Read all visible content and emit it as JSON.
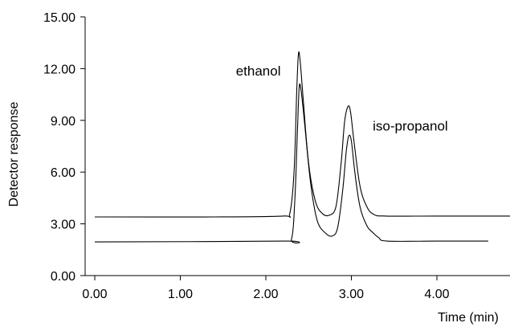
{
  "chart_data": {
    "type": "line",
    "title": "",
    "xlabel": "Time (min)",
    "ylabel": "Detector response",
    "xlim": [
      0,
      4.95
    ],
    "ylim": [
      0,
      15
    ],
    "grid": false,
    "x_ticks": [
      "0.00",
      "1.00",
      "2.00",
      "3.00",
      "4.00"
    ],
    "x_tick_values": [
      0,
      1,
      2,
      3,
      4
    ],
    "y_ticks": [
      "0.00",
      "3.00",
      "6.00",
      "9.00",
      "12.00",
      "15.00"
    ],
    "y_tick_values": [
      0,
      3,
      6,
      9,
      12,
      15
    ],
    "annotations": [
      {
        "text": "ethanol",
        "x": 1.65,
        "y": 11.6
      },
      {
        "text": "iso-propanol",
        "x": 3.25,
        "y": 8.4
      }
    ],
    "series": [
      {
        "x": [
          0.0,
          1.4,
          2.2,
          2.28,
          2.33,
          2.36,
          2.38,
          2.4,
          2.44,
          2.5,
          2.58,
          2.66,
          2.74,
          2.82,
          2.88,
          2.92,
          2.96,
          2.99,
          3.03,
          3.1,
          3.18,
          3.26,
          3.4,
          4.0,
          4.95
        ],
        "y": [
          3.4,
          3.4,
          3.45,
          3.6,
          6.0,
          10.5,
          12.8,
          12.5,
          10.0,
          6.5,
          4.3,
          3.6,
          3.5,
          4.0,
          6.5,
          8.9,
          9.8,
          9.5,
          7.8,
          5.2,
          4.0,
          3.55,
          3.45,
          3.45,
          3.45
        ]
      },
      {
        "x": [
          0.0,
          2.2,
          2.3,
          2.34,
          2.37,
          2.39,
          2.41,
          2.45,
          2.52,
          2.6,
          2.7,
          2.78,
          2.84,
          2.9,
          2.94,
          2.97,
          3.0,
          3.04,
          3.1,
          3.18,
          3.25,
          3.32,
          3.42,
          4.0,
          4.6
        ],
        "y": [
          1.95,
          2.0,
          2.1,
          4.5,
          8.5,
          10.9,
          10.8,
          9.0,
          5.5,
          3.2,
          2.45,
          2.3,
          2.8,
          5.0,
          7.2,
          8.1,
          7.8,
          6.0,
          4.0,
          2.9,
          2.5,
          2.2,
          2.0,
          2.0,
          2.0
        ]
      }
    ]
  }
}
